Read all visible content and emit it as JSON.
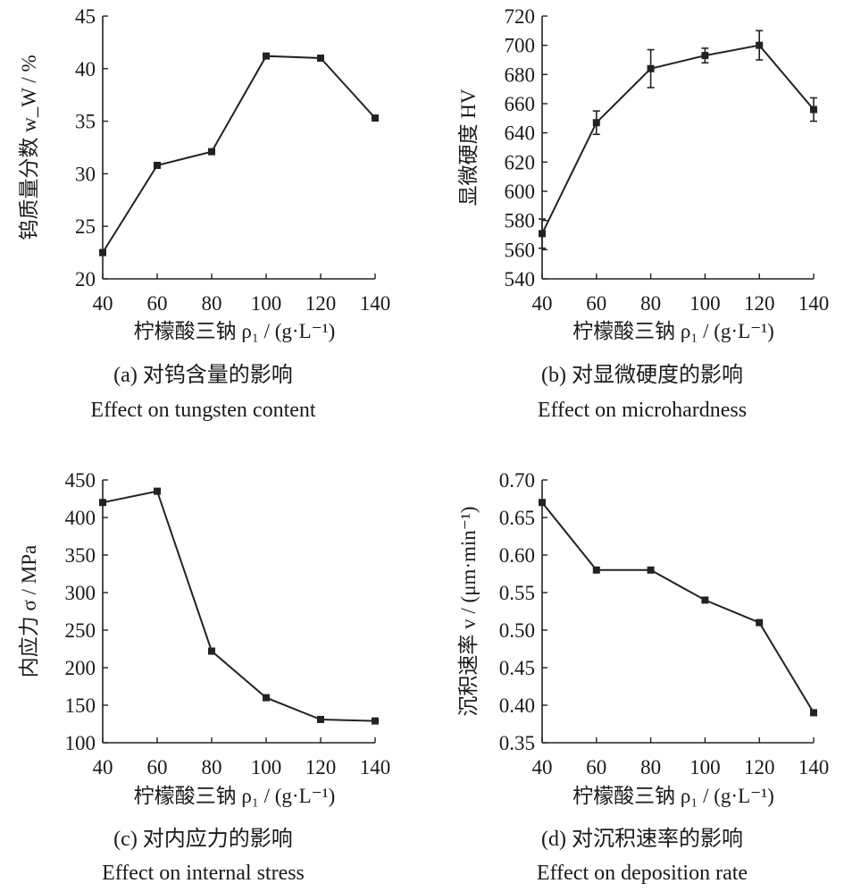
{
  "chart_data": [
    {
      "id": "a",
      "type": "line",
      "x": [
        40,
        60,
        80,
        100,
        120,
        140
      ],
      "y": [
        22.5,
        30.8,
        32.1,
        41.2,
        41.0,
        35.3
      ],
      "xlim": [
        40,
        140
      ],
      "ylim": [
        20,
        45
      ],
      "xticks": [
        "40",
        "60",
        "80",
        "100",
        "120",
        "140"
      ],
      "yticks": [
        "20",
        "25",
        "30",
        "35",
        "40",
        "45"
      ],
      "xlabel": "柠檬酸三钠 ρ₁ / (g·L⁻¹)",
      "ylabel": "钨质量分数 w_W / %",
      "caption_cn": "(a) 对钨含量的影响",
      "caption_en": "Effect on tungsten content",
      "grid": false
    },
    {
      "id": "b",
      "type": "line",
      "x": [
        40,
        60,
        80,
        100,
        120,
        140
      ],
      "y": [
        571,
        647,
        684,
        693,
        700,
        656
      ],
      "yerr": [
        10,
        8,
        13,
        5,
        10,
        8
      ],
      "xlim": [
        40,
        140
      ],
      "ylim": [
        540,
        720
      ],
      "xticks": [
        "40",
        "60",
        "80",
        "100",
        "120",
        "140"
      ],
      "yticks": [
        "540",
        "560",
        "580",
        "600",
        "620",
        "640",
        "660",
        "680",
        "700",
        "720"
      ],
      "xlabel": "柠檬酸三钠 ρ₁ / (g·L⁻¹)",
      "ylabel": "显微硬度 HV",
      "caption_cn": "(b) 对显微硬度的影响",
      "caption_en": "Effect on microhardness",
      "grid": false
    },
    {
      "id": "c",
      "type": "line",
      "x": [
        40,
        60,
        80,
        100,
        120,
        140
      ],
      "y": [
        420,
        435,
        222,
        160,
        131,
        129
      ],
      "xlim": [
        40,
        140
      ],
      "ylim": [
        100,
        450
      ],
      "xticks": [
        "40",
        "60",
        "80",
        "100",
        "120",
        "140"
      ],
      "yticks": [
        "100",
        "150",
        "200",
        "250",
        "300",
        "350",
        "400",
        "450"
      ],
      "xlabel": "柠檬酸三钠 ρ₁ / (g·L⁻¹)",
      "ylabel": "内应力 σ / MPa",
      "caption_cn": "(c) 对内应力的影响",
      "caption_en": "Effect on internal stress",
      "grid": false
    },
    {
      "id": "d",
      "type": "line",
      "x": [
        40,
        60,
        80,
        100,
        120,
        140
      ],
      "y": [
        0.67,
        0.58,
        0.58,
        0.54,
        0.51,
        0.39
      ],
      "xlim": [
        40,
        140
      ],
      "ylim": [
        0.35,
        0.7
      ],
      "xticks": [
        "40",
        "60",
        "80",
        "100",
        "120",
        "140"
      ],
      "yticks": [
        "0.35",
        "0.40",
        "0.45",
        "0.50",
        "0.55",
        "0.60",
        "0.65",
        "0.70"
      ],
      "xlabel": "柠檬酸三钠 ρ₁ / (g·L⁻¹)",
      "ylabel": "沉积速率 v / (μm·min⁻¹)",
      "caption_cn": "(d) 对沉积速率的影响",
      "caption_en": "Effect on deposition rate",
      "grid": false
    }
  ]
}
